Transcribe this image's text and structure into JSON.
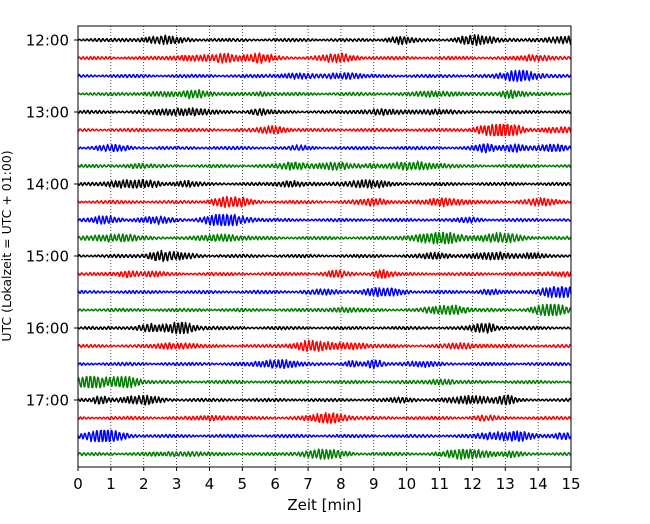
{
  "chart_data": {
    "type": "line",
    "title": "",
    "xlabel": "Zeit  [min]",
    "ylabel": "UTC (Lokalzeit = UTC + 01:00)",
    "xlim": [
      0,
      15
    ],
    "x_ticks": [
      0,
      1,
      2,
      3,
      4,
      5,
      6,
      7,
      8,
      9,
      10,
      11,
      12,
      13,
      14,
      15
    ],
    "grid": "vertical dotted",
    "y_tick_labels": [
      "12:00",
      "13:00",
      "14:00",
      "15:00",
      "16:00",
      "17:00"
    ],
    "trace_interval_minutes": 15,
    "trace_start": "12:00",
    "trace_count": 24,
    "trace_colors": [
      "#000000",
      "#ff0000",
      "#0000ff",
      "#007f00"
    ],
    "series_description": "24 consecutive 15-minute seismogram traces (helicorder), colors cycling black, red, blue, green"
  }
}
